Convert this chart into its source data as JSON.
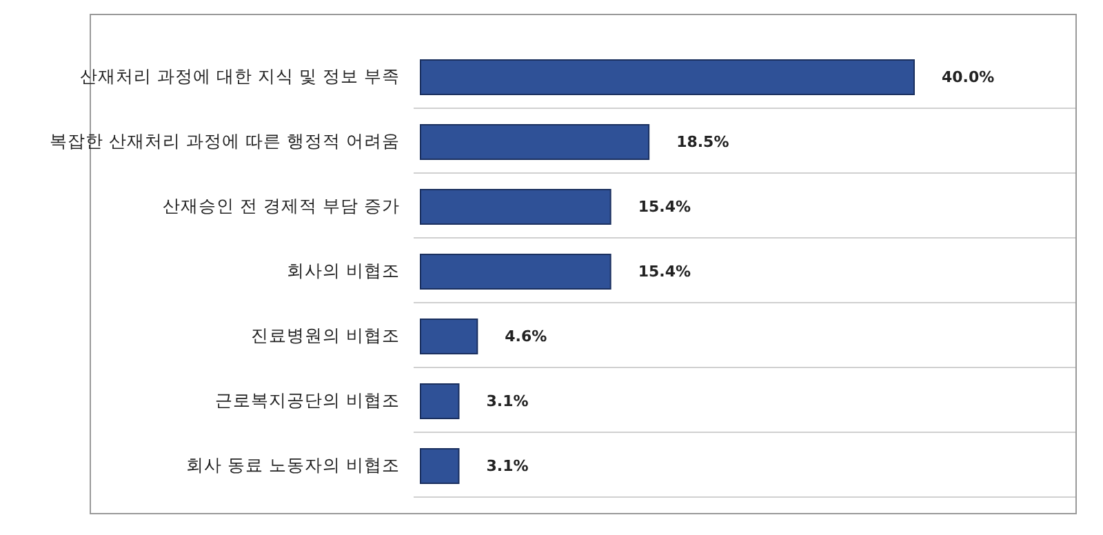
{
  "chart_data": {
    "type": "bar",
    "orientation": "horizontal",
    "categories": [
      "산재처리 과정에 대한 지식 및 정보 부족",
      "복잡한 산재처리 과정에 따른 행정적 어려움",
      "산재승인 전 경제적 부담 증가",
      "회사의 비협조",
      "진료병원의 비협조",
      "근로복지공단의 비협조",
      "회사 동료 노동자의 비협조"
    ],
    "values": [
      40.0,
      18.5,
      15.4,
      15.4,
      4.6,
      3.1,
      3.1
    ],
    "value_labels": [
      "40.0%",
      "18.5%",
      "15.4%",
      "15.4%",
      "4.6%",
      "3.1%",
      "3.1%"
    ],
    "color": "#2f5197",
    "grid": "y"
  }
}
